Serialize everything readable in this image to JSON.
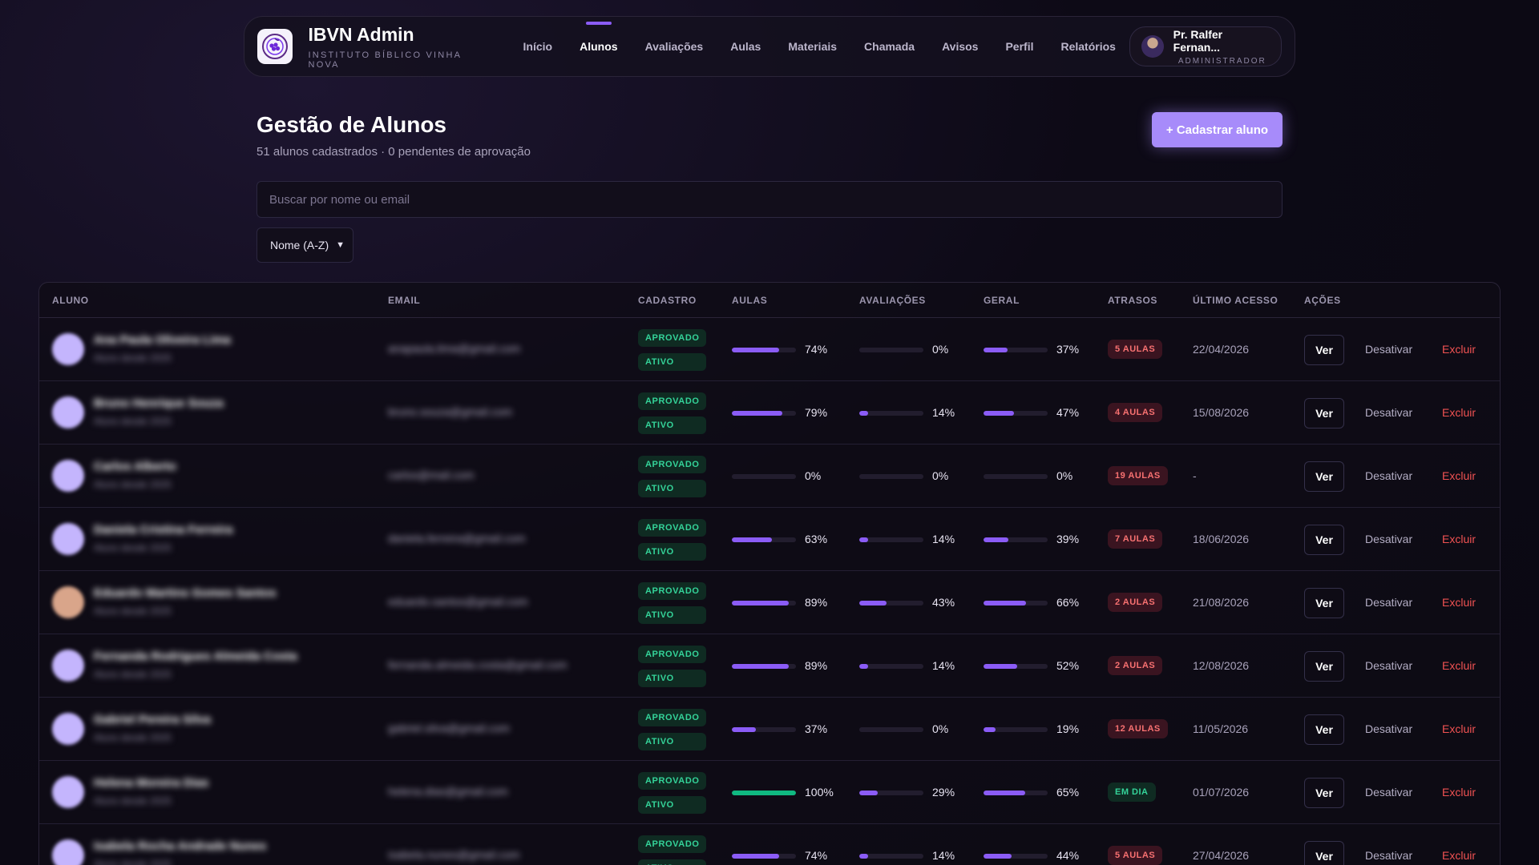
{
  "header": {
    "title": "IBVN Admin",
    "subtitle": "INSTITUTO BÍBLICO VINHA NOVA",
    "nav": [
      {
        "label": "Início",
        "active": false
      },
      {
        "label": "Alunos",
        "active": true
      },
      {
        "label": "Avaliações",
        "active": false
      },
      {
        "label": "Aulas",
        "active": false
      },
      {
        "label": "Materiais",
        "active": false
      },
      {
        "label": "Chamada",
        "active": false
      },
      {
        "label": "Avisos",
        "active": false
      },
      {
        "label": "Perfil",
        "active": false
      },
      {
        "label": "Relatórios",
        "active": false
      }
    ],
    "user": {
      "name": "Pr. Ralfer Fernan...",
      "role": "ADMINISTRADOR"
    }
  },
  "page": {
    "title": "Gestão de Alunos",
    "subtitle": "51 alunos cadastrados · 0 pendentes de aprovação",
    "add_button": "+ Cadastrar aluno",
    "search_placeholder": "Buscar por nome ou email",
    "sort_value": "Nome (A-Z)"
  },
  "colors": {
    "accent": "#8b5cf6",
    "accent_light": "#a78bfa",
    "success": "#34d399",
    "danger": "#f05252"
  },
  "table": {
    "columns": [
      "ALUNO",
      "EMAIL",
      "CADASTRO",
      "AULAS",
      "AVALIAÇÕES",
      "GERAL",
      "ATRASOS",
      "ÚLTIMO ACESSO",
      "AÇÕES"
    ],
    "action_labels": {
      "view": "Ver",
      "deactivate": "Desativar",
      "delete": "Excluir"
    },
    "rows": [
      {
        "status1": "APROVADO",
        "status2": "ATIVO",
        "aulas": 74,
        "aulas_label": "74%",
        "aval": 0,
        "aval_label": "0%",
        "geral": 37,
        "geral_label": "37%",
        "atrasos": "5 AULAS",
        "ok": false,
        "acesso": "22/04/2026"
      },
      {
        "status1": "APROVADO",
        "status2": "ATIVO",
        "aulas": 79,
        "aulas_label": "79%",
        "aval": 14,
        "aval_label": "14%",
        "geral": 47,
        "geral_label": "47%",
        "atrasos": "4 AULAS",
        "ok": false,
        "acesso": "15/08/2026"
      },
      {
        "status1": "APROVADO",
        "status2": "ATIVO",
        "aulas": 0,
        "aulas_label": "0%",
        "aval": 0,
        "aval_label": "0%",
        "geral": 0,
        "geral_label": "0%",
        "atrasos": "19 AULAS",
        "ok": false,
        "acesso": "-"
      },
      {
        "status1": "APROVADO",
        "status2": "ATIVO",
        "aulas": 63,
        "aulas_label": "63%",
        "aval": 14,
        "aval_label": "14%",
        "geral": 39,
        "geral_label": "39%",
        "atrasos": "7 AULAS",
        "ok": false,
        "acesso": "18/06/2026"
      },
      {
        "status1": "APROVADO",
        "status2": "ATIVO",
        "aulas": 89,
        "aulas_label": "89%",
        "aval": 43,
        "aval_label": "43%",
        "geral": 66,
        "geral_label": "66%",
        "atrasos": "2 AULAS",
        "ok": false,
        "acesso": "21/08/2026"
      },
      {
        "status1": "APROVADO",
        "status2": "ATIVO",
        "aulas": 89,
        "aulas_label": "89%",
        "aval": 14,
        "aval_label": "14%",
        "geral": 52,
        "geral_label": "52%",
        "atrasos": "2 AULAS",
        "ok": false,
        "acesso": "12/08/2026"
      },
      {
        "status1": "APROVADO",
        "status2": "ATIVO",
        "aulas": 37,
        "aulas_label": "37%",
        "aval": 0,
        "aval_label": "0%",
        "geral": 19,
        "geral_label": "19%",
        "atrasos": "12 AULAS",
        "ok": false,
        "acesso": "11/05/2026"
      },
      {
        "status1": "APROVADO",
        "status2": "ATIVO",
        "aulas": 100,
        "aulas_label": "100%",
        "aval": 29,
        "aval_label": "29%",
        "geral": 65,
        "geral_label": "65%",
        "atrasos": "EM DIA",
        "ok": true,
        "acesso": "01/07/2026"
      },
      {
        "status1": "APROVADO",
        "status2": "ATIVO",
        "aulas": 74,
        "aulas_label": "74%",
        "aval": 14,
        "aval_label": "14%",
        "geral": 44,
        "geral_label": "44%",
        "atrasos": "5 AULAS",
        "ok": false,
        "acesso": "27/04/2026"
      }
    ]
  }
}
